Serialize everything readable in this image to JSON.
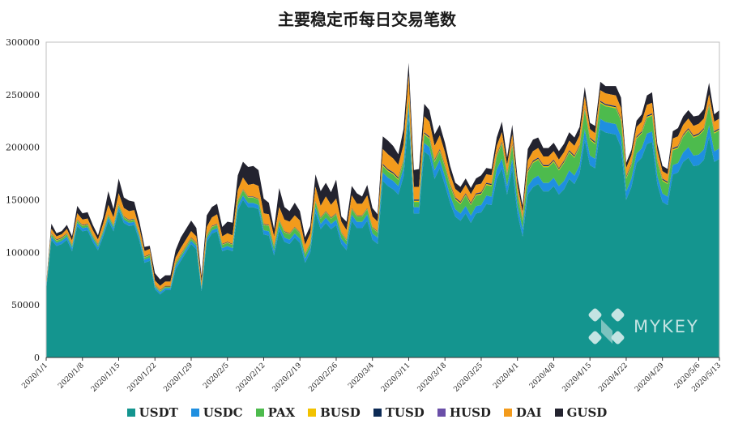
{
  "chart_data": {
    "type": "area",
    "title": "主要稳定币每日交易笔数",
    "ylim": [
      0,
      300000
    ],
    "y_ticks": [
      "0",
      "50000",
      "100000",
      "150000",
      "200000",
      "250000",
      "300000"
    ],
    "x_tick_labels": [
      "2020/1/1",
      "2020/1/8",
      "2020/1/15",
      "2020/1/22",
      "2020/1/29",
      "2020/2/5",
      "2020/2/12",
      "2020/2/19",
      "2020/2/26",
      "2020/3/4",
      "2020/3/11",
      "2020/3/18",
      "2020/3/25",
      "2020/4/1",
      "2020/4/8",
      "2020/4/15",
      "2020/4/22",
      "2020/4/29",
      "2020/5/6",
      "2020/5/13"
    ],
    "series": [
      {
        "name": "USDT",
        "color": "#14958f",
        "values": [
          64000,
          112000,
          106000,
          108000,
          112000,
          101000,
          125000,
          120000,
          121000,
          110000,
          102000,
          115000,
          130000,
          120000,
          140000,
          128000,
          125000,
          126000,
          111000,
          90000,
          92000,
          65000,
          60000,
          64000,
          64000,
          84000,
          92000,
          100000,
          108000,
          103000,
          63000,
          110000,
          118000,
          120000,
          101000,
          103000,
          101000,
          140000,
          150000,
          143000,
          143000,
          141000,
          117000,
          116000,
          97000,
          121000,
          110000,
          108000,
          114000,
          109000,
          90000,
          100000,
          138000,
          122000,
          128000,
          122000,
          126000,
          108000,
          102000,
          130000,
          123000,
          123000,
          130000,
          112000,
          108000,
          168000,
          163000,
          160000,
          155000,
          172000,
          228000,
          137000,
          137000,
          196000,
          192000,
          170000,
          180000,
          164000,
          147000,
          134000,
          130000,
          137000,
          128000,
          137000,
          138000,
          146000,
          145000,
          170000,
          180000,
          155000,
          180000,
          137000,
          115000,
          155000,
          162000,
          165000,
          158000,
          158000,
          163000,
          155000,
          160000,
          170000,
          165000,
          175000,
          207000,
          183000,
          180000,
          217000,
          214000,
          213000,
          212000,
          200000,
          150000,
          162000,
          185000,
          190000,
          203000,
          205000,
          165000,
          148000,
          145000,
          174000,
          176000,
          186000,
          190000,
          182000,
          183000,
          188000,
          210000,
          186000,
          189000
        ]
      },
      {
        "name": "USDC",
        "color": "#1f8fe0",
        "values": [
          2000,
          3000,
          3000,
          3000,
          3000,
          3000,
          3000,
          3000,
          3000,
          3000,
          3000,
          3000,
          3000,
          3000,
          3000,
          3000,
          3000,
          3000,
          3000,
          3000,
          3000,
          2000,
          2000,
          2000,
          2000,
          3000,
          3000,
          3000,
          3000,
          3000,
          2000,
          3000,
          3000,
          3000,
          3000,
          3000,
          3000,
          4000,
          4000,
          4000,
          4000,
          4000,
          4000,
          4000,
          4000,
          4000,
          4000,
          4000,
          4000,
          4000,
          4000,
          4000,
          5000,
          5000,
          5000,
          5000,
          5000,
          5000,
          5000,
          6000,
          6000,
          6000,
          6000,
          6000,
          6000,
          8000,
          8000,
          8000,
          8000,
          8000,
          10000,
          6000,
          6000,
          8000,
          8000,
          8000,
          8000,
          8000,
          7000,
          7000,
          7000,
          7000,
          7000,
          7000,
          7000,
          8000,
          8000,
          9000,
          9000,
          8000,
          9000,
          8000,
          7000,
          8000,
          8000,
          8000,
          8000,
          8000,
          8000,
          8000,
          8000,
          8000,
          8000,
          8000,
          10000,
          9000,
          9000,
          10000,
          10000,
          10000,
          10000,
          10000,
          8000,
          8000,
          9000,
          9000,
          10000,
          10000,
          8000,
          8000,
          8000,
          9000,
          9000,
          9000,
          10000,
          10000,
          10000,
          10000,
          11000,
          10000,
          10000
        ]
      },
      {
        "name": "PAX",
        "color": "#4dbb4d",
        "values": [
          1000,
          2000,
          2000,
          2000,
          2000,
          2000,
          2000,
          2000,
          2000,
          2000,
          2000,
          2000,
          2000,
          2000,
          2000,
          2000,
          2000,
          2000,
          2000,
          2000,
          2000,
          1000,
          1000,
          1000,
          1000,
          2000,
          2000,
          2000,
          2000,
          2000,
          1000,
          2000,
          3000,
          3000,
          3000,
          3000,
          3000,
          4000,
          5000,
          5000,
          5000,
          5000,
          5000,
          5000,
          4000,
          5000,
          5000,
          5000,
          5000,
          5000,
          4000,
          4000,
          5000,
          5000,
          5000,
          5000,
          5000,
          5000,
          4000,
          5000,
          5000,
          5000,
          5000,
          5000,
          5000,
          6000,
          6000,
          6000,
          6000,
          6000,
          6000,
          5000,
          5000,
          8000,
          8000,
          8000,
          8000,
          9000,
          9000,
          9000,
          9000,
          10000,
          10000,
          10000,
          10000,
          10000,
          10000,
          12000,
          14000,
          10000,
          12000,
          10000,
          8000,
          13000,
          15000,
          15000,
          15000,
          15000,
          15000,
          15000,
          17000,
          17000,
          17000,
          17000,
          18000,
          15000,
          14000,
          15000,
          15000,
          15000,
          15000,
          15000,
          12000,
          12000,
          14000,
          14000,
          15000,
          15000,
          13000,
          12000,
          12000,
          14000,
          14000,
          15000,
          16000,
          17000,
          18000,
          18000,
          18000,
          17000,
          17000
        ]
      },
      {
        "name": "BUSD",
        "color": "#f2c200",
        "values": [
          0,
          500,
          500,
          500,
          500,
          500,
          500,
          500,
          500,
          500,
          500,
          500,
          500,
          500,
          500,
          500,
          500,
          500,
          500,
          500,
          500,
          500,
          500,
          500,
          500,
          500,
          500,
          500,
          500,
          500,
          500,
          500,
          500,
          500,
          500,
          500,
          500,
          500,
          500,
          500,
          500,
          500,
          500,
          500,
          500,
          500,
          500,
          500,
          500,
          500,
          500,
          500,
          500,
          500,
          500,
          500,
          500,
          500,
          500,
          500,
          500,
          500,
          500,
          500,
          500,
          1000,
          1000,
          1000,
          1000,
          1000,
          1000,
          1000,
          1000,
          1000,
          1000,
          1000,
          1000,
          1000,
          1000,
          1000,
          1000,
          1000,
          1000,
          1000,
          1000,
          1000,
          1000,
          1000,
          1000,
          1000,
          1000,
          1000,
          1000,
          1000,
          1000,
          1000,
          1000,
          1000,
          1000,
          1000,
          1000,
          1000,
          1000,
          1000,
          1000,
          1000,
          1000,
          1000,
          1000,
          1000,
          1000,
          1000,
          1000,
          1000,
          1000,
          1000,
          1000,
          1000,
          1000,
          1000,
          1000,
          1000,
          1000,
          1000,
          1000,
          1000,
          1000,
          1000,
          1000,
          1000,
          1000
        ]
      },
      {
        "name": "TUSD",
        "color": "#0c2a55",
        "values": [
          0,
          500,
          500,
          500,
          500,
          500,
          500,
          500,
          500,
          500,
          500,
          500,
          500,
          500,
          500,
          500,
          500,
          500,
          500,
          500,
          500,
          500,
          500,
          500,
          500,
          500,
          500,
          500,
          500,
          500,
          500,
          500,
          500,
          500,
          500,
          500,
          500,
          500,
          500,
          500,
          500,
          500,
          500,
          500,
          500,
          500,
          500,
          500,
          500,
          500,
          500,
          500,
          500,
          500,
          500,
          500,
          500,
          500,
          500,
          500,
          500,
          500,
          500,
          500,
          500,
          1000,
          1000,
          1000,
          1000,
          1000,
          1000,
          1000,
          1000,
          1000,
          1000,
          1000,
          1000,
          1000,
          1000,
          1000,
          1000,
          1000,
          1000,
          1000,
          1000,
          1000,
          1000,
          1000,
          1000,
          1000,
          1000,
          1000,
          1000,
          1000,
          1000,
          1000,
          1000,
          1000,
          1000,
          1000,
          1000,
          1000,
          1000,
          1000,
          1000,
          1000,
          1000,
          1000,
          1000,
          1000,
          1000,
          1000,
          1000,
          1000,
          1000,
          1000,
          1000,
          1000,
          1000,
          1000,
          1000,
          1000,
          1000,
          1000,
          1000,
          1000,
          1000,
          1000,
          1000,
          1000,
          1000
        ]
      },
      {
        "name": "HUSD",
        "color": "#6a4fa8",
        "values": [
          0,
          200,
          200,
          200,
          200,
          200,
          200,
          200,
          200,
          200,
          200,
          200,
          200,
          200,
          200,
          200,
          200,
          200,
          200,
          200,
          200,
          200,
          200,
          200,
          200,
          200,
          200,
          200,
          200,
          200,
          200,
          200,
          200,
          200,
          200,
          200,
          200,
          200,
          200,
          200,
          200,
          200,
          200,
          200,
          200,
          200,
          200,
          200,
          200,
          200,
          200,
          200,
          200,
          200,
          200,
          200,
          200,
          200,
          200,
          200,
          200,
          200,
          200,
          200,
          200,
          300,
          300,
          300,
          300,
          300,
          300,
          300,
          300,
          300,
          300,
          300,
          300,
          300,
          300,
          300,
          300,
          300,
          300,
          300,
          300,
          300,
          300,
          300,
          300,
          300,
          300,
          300,
          300,
          300,
          300,
          300,
          300,
          300,
          300,
          300,
          300,
          300,
          300,
          300,
          300,
          300,
          300,
          300,
          300,
          300,
          300,
          300,
          300,
          300,
          300,
          300,
          300,
          300,
          300,
          300,
          300,
          300,
          300,
          300,
          300,
          300,
          300,
          300,
          300,
          300,
          300
        ]
      },
      {
        "name": "DAI",
        "color": "#f39b1c",
        "values": [
          2000,
          4000,
          3000,
          3000,
          4000,
          4000,
          6000,
          5000,
          5000,
          5000,
          4000,
          6000,
          9000,
          7000,
          10000,
          8000,
          8000,
          8000,
          6000,
          5000,
          5000,
          4000,
          4000,
          4000,
          4000,
          5000,
          6000,
          6000,
          6000,
          6000,
          5000,
          8000,
          8000,
          9000,
          7000,
          8000,
          8000,
          10000,
          11000,
          11000,
          12000,
          12000,
          10000,
          10000,
          9000,
          12000,
          11000,
          11000,
          11000,
          11000,
          8000,
          9000,
          13000,
          11000,
          14000,
          12000,
          14000,
          10000,
          9000,
          12000,
          11000,
          11000,
          12000,
          10000,
          9000,
          14000,
          14000,
          13000,
          12000,
          14000,
          22000,
          12000,
          12000,
          15000,
          14000,
          13000,
          13000,
          12000,
          9000,
          8000,
          8000,
          8000,
          8000,
          8000,
          8000,
          8000,
          8000,
          8000,
          9000,
          8000,
          9000,
          7000,
          6000,
          9000,
          9000,
          9000,
          8000,
          8000,
          8000,
          8000,
          8000,
          9000,
          9000,
          9000,
          11000,
          8000,
          8000,
          10000,
          10000,
          10000,
          10000,
          10000,
          8000,
          8000,
          9000,
          9000,
          10000,
          10000,
          9000,
          7000,
          7000,
          9000,
          9000,
          9000,
          9000,
          9000,
          9000,
          9000,
          9000,
          9000,
          9000
        ]
      },
      {
        "name": "GUSD",
        "color": "#23232f",
        "values": [
          1000,
          5000,
          3000,
          3000,
          4000,
          4000,
          7000,
          6000,
          6000,
          5000,
          4000,
          6000,
          13000,
          8000,
          14000,
          10000,
          10000,
          8000,
          6000,
          4000,
          3000,
          7000,
          6000,
          6000,
          6000,
          7000,
          10000,
          10000,
          10000,
          8000,
          5000,
          11000,
          10000,
          10000,
          9000,
          11000,
          12000,
          14000,
          15000,
          17000,
          17000,
          15000,
          14000,
          11000,
          7000,
          18000,
          12000,
          10000,
          12000,
          9000,
          7000,
          7000,
          12000,
          14000,
          13000,
          12000,
          18000,
          5000,
          8000,
          9000,
          10000,
          7000,
          10000,
          8000,
          7000,
          12000,
          13000,
          12000,
          10000,
          15000,
          12000,
          16000,
          17000,
          12000,
          11000,
          11000,
          10000,
          9000,
          8000,
          6000,
          6000,
          6000,
          6000,
          6000,
          8000,
          6000,
          6000,
          8000,
          10000,
          7000,
          9000,
          7000,
          6000,
          11000,
          11000,
          10000,
          8000,
          8000,
          8000,
          8000,
          8000,
          8000,
          8000,
          8000,
          9000,
          6000,
          7000,
          8000,
          7000,
          8000,
          9000,
          10000,
          5000,
          5000,
          6000,
          7000,
          9000,
          10000,
          6000,
          5000,
          5000,
          7000,
          8000,
          8000,
          8000,
          9000,
          8000,
          9000,
          11000,
          7000,
          8000
        ]
      }
    ]
  },
  "watermark": {
    "text": "MYKEY"
  }
}
